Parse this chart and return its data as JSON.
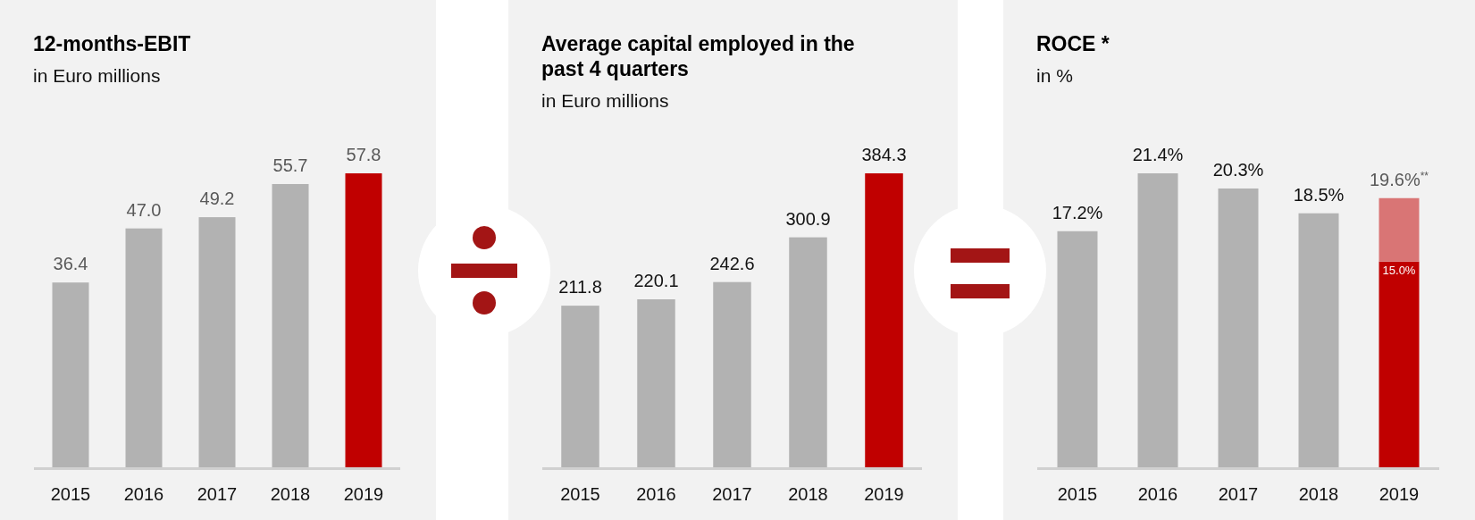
{
  "chart_data": [
    {
      "type": "bar",
      "title": "12-months-EBIT",
      "subtitle": "in Euro millions",
      "categories": [
        "2015",
        "2016",
        "2017",
        "2018",
        "2019"
      ],
      "values": [
        36.4,
        47.0,
        49.2,
        55.7,
        57.8
      ],
      "value_labels": [
        "36.4",
        "47.0",
        "49.2",
        "55.7",
        "57.8"
      ],
      "colors": [
        "#b2b2b2",
        "#b2b2b2",
        "#b2b2b2",
        "#b2b2b2",
        "#c00000"
      ]
    },
    {
      "type": "bar",
      "title": "Average capital employed in the past 4 quarters",
      "subtitle": "in Euro millions",
      "categories": [
        "2015",
        "2016",
        "2017",
        "2018",
        "2019"
      ],
      "values": [
        211.8,
        220.1,
        242.6,
        300.9,
        384.3
      ],
      "value_labels": [
        "211.8",
        "220.1",
        "242.6",
        "300.9",
        "384.3"
      ],
      "colors": [
        "#b2b2b2",
        "#b2b2b2",
        "#b2b2b2",
        "#b2b2b2",
        "#c00000"
      ]
    },
    {
      "type": "bar",
      "title": "ROCE *",
      "subtitle": "in %",
      "categories": [
        "2015",
        "2016",
        "2017",
        "2018",
        "2019"
      ],
      "stacked": true,
      "series": [
        {
          "values": [
            17.2,
            21.4,
            20.3,
            18.5,
            15.0
          ],
          "colors": [
            "#b2b2b2",
            "#b2b2b2",
            "#b2b2b2",
            "#b2b2b2",
            "#c00000"
          ],
          "value_labels": [
            "17.2%",
            "21.4%",
            "20.3%",
            "18.5%",
            "15.0%"
          ]
        },
        {
          "values": [
            null,
            null,
            null,
            null,
            4.6
          ],
          "color": "#d97575"
        }
      ],
      "totals": [
        null,
        null,
        null,
        null,
        "19.6%$^{**}$"
      ]
    }
  ]
}
